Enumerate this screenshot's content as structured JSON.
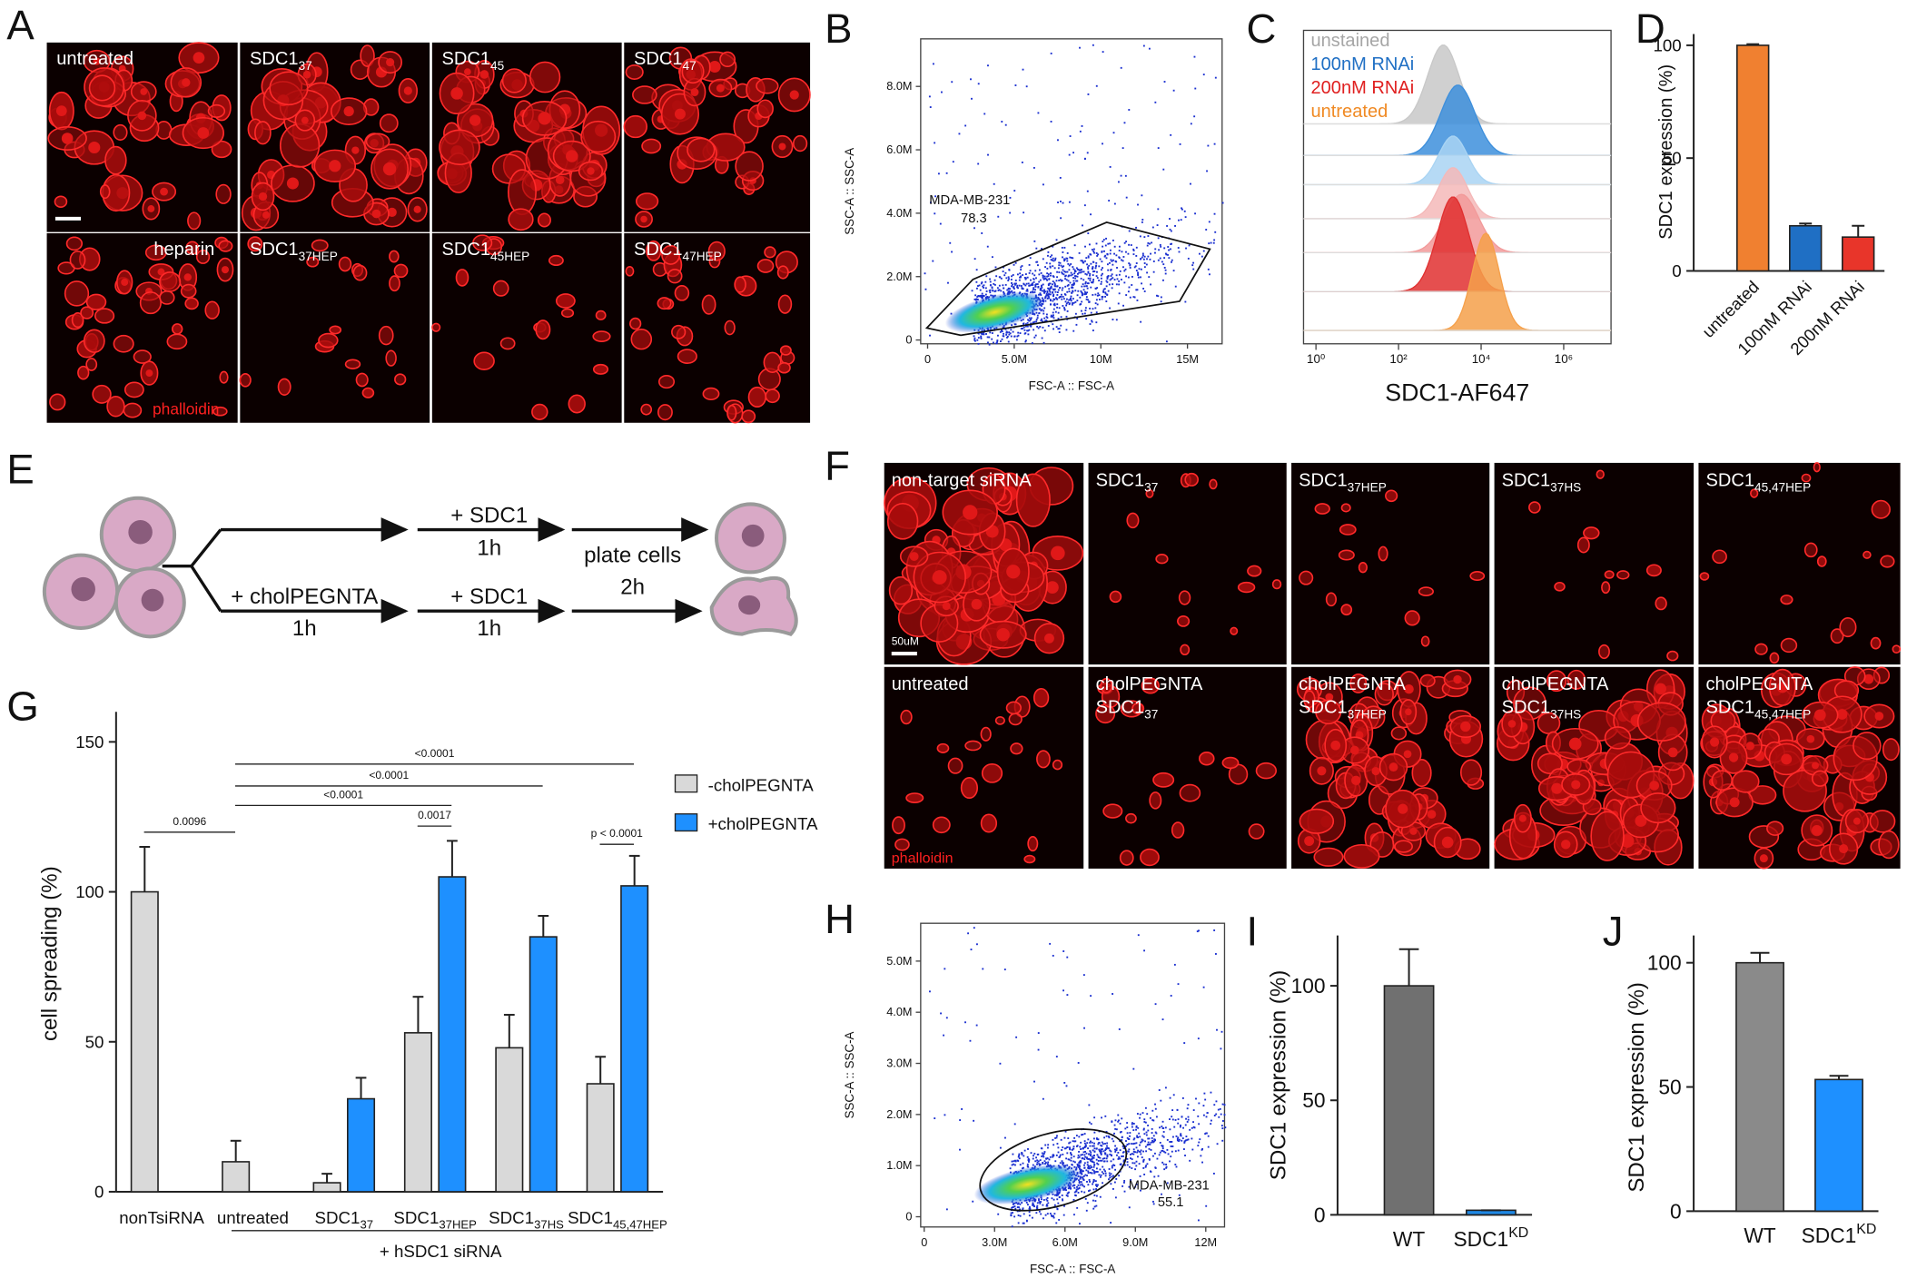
{
  "panel_labels": [
    "A",
    "B",
    "C",
    "D",
    "E",
    "F",
    "G",
    "H",
    "I",
    "J"
  ],
  "panel_a": {
    "row1": [
      {
        "text": "untreated"
      },
      {
        "text": "SDC1",
        "sub": "37"
      },
      {
        "text": "SDC1",
        "sub": "45"
      },
      {
        "text": "SDC1",
        "sub": "47"
      }
    ],
    "row2": [
      {
        "text": "heparin"
      },
      {
        "text": "SDC1",
        "sub": "37HEP"
      },
      {
        "text": "SDC1",
        "sub": "45HEP"
      },
      {
        "text": "SDC1",
        "sub": "47HEP"
      }
    ],
    "stain": "phalloidin"
  },
  "panel_b": {
    "x_label": "FSC-A :: FSC-A",
    "y_label": "SSC-A :: SSC-A",
    "xlim": [
      -400000,
      17000000
    ],
    "ylim": [
      -120000,
      9500000
    ],
    "xticks": [
      0,
      {
        "value": 5000000,
        "label": "5.0M"
      },
      {
        "value": 10000000,
        "label": "10M"
      },
      {
        "value": 15000000,
        "label": "15M"
      }
    ],
    "yticks": [
      0,
      {
        "value": 2000000,
        "label": "2.0M"
      },
      {
        "value": 4000000,
        "label": "4.0M"
      },
      {
        "value": 6000000,
        "label": "6.0M"
      },
      {
        "value": 8000000,
        "label": "8.0M"
      }
    ],
    "gate_name": "MDA-MB-231",
    "gate_percent": 78.3
  },
  "panel_c": {
    "x_label": "SDC1-AF647",
    "log_x": true,
    "xlim": [
      0.5,
      14000000
    ],
    "xticks": [
      {
        "value": 1,
        "label": "10⁰"
      },
      {
        "value": 100,
        "label": "10²"
      },
      {
        "value": 10000,
        "label": "10⁴"
      },
      {
        "value": 1000000,
        "label": "10⁶"
      }
    ],
    "legend": [
      {
        "name": "unstained",
        "color": "#a6a6a6"
      },
      {
        "name": "100nM RNAi",
        "color": "#1f6fc4"
      },
      {
        "name": "200nM RNAi",
        "color": "#e02020"
      },
      {
        "name": "untreated",
        "color": "#f08a24"
      }
    ]
  },
  "panel_e": {
    "top_step": "+ SDC1",
    "top_time": "1h",
    "plate": "plate cells",
    "plate_time": "2h",
    "chol": "+ cholPEGNTA",
    "chol_time": "1h",
    "bottom_step": "+ SDC1",
    "bottom_time": "1h"
  },
  "panel_f": {
    "row1": [
      {
        "text": "non-target siRNA"
      },
      {
        "text": "SDC1",
        "sub": "37"
      },
      {
        "text": "SDC1",
        "sub": "37HEP"
      },
      {
        "text": "SDC1",
        "sub": "37HS"
      },
      {
        "text": "SDC1",
        "sub": "45,47HEP"
      }
    ],
    "row2": [
      {
        "text": "untreated"
      },
      {
        "top": "cholPEGNTA",
        "text": "SDC1",
        "sub": "37"
      },
      {
        "top": "cholPEGNTA",
        "text": "SDC1",
        "sub": "37HEP"
      },
      {
        "top": "cholPEGNTA",
        "text": "SDC1",
        "sub": "37HS"
      },
      {
        "top": "cholPEGNTA",
        "text": "SDC1",
        "sub": "45,47HEP"
      }
    ],
    "scale_bar": "50uM",
    "stain": "phalloidin"
  },
  "panel_h": {
    "x_label": "FSC-A :: FSC-A",
    "y_label": "SSC-A :: SSC-A",
    "xlim": [
      -150000,
      12800000
    ],
    "ylim": [
      -200000,
      5740000
    ],
    "xticks": [
      0,
      {
        "value": 3000000,
        "label": "3.0M"
      },
      {
        "value": 6000000,
        "label": "6.0M"
      },
      {
        "value": 9000000,
        "label": "9.0M"
      },
      {
        "value": 12000000,
        "label": "12M"
      }
    ],
    "yticks": [
      0,
      {
        "value": 1000000,
        "label": "1.0M"
      },
      {
        "value": 2000000,
        "label": "2.0M"
      },
      {
        "value": 3000000,
        "label": "3.0M"
      },
      {
        "value": 4000000,
        "label": "4.0M"
      },
      {
        "value": 5000000,
        "label": "5.0M"
      }
    ],
    "gate_name": "MDA-MB-231",
    "gate_percent": 55.1
  },
  "chart_data": [
    {
      "type": "bar",
      "y_label": "SDC1 expression (%)",
      "categories": [
        "untreated",
        "100nM RNAi",
        "200nM RNAi"
      ],
      "values": [
        100,
        20,
        15
      ],
      "errors": [
        0.5,
        1,
        5
      ],
      "colors": [
        "#f08030",
        "#1f6fc4",
        "#e8352a"
      ],
      "ylim": [
        0,
        105
      ],
      "yticks": [
        0,
        50,
        100
      ]
    },
    {
      "type": "grouped_bar",
      "y_label": "cell spreading (%)",
      "categories": [
        "nonTsiRNA",
        "untreated",
        "SDC1",
        "SDC1",
        "SDC1",
        "SDC1"
      ],
      "category_subscripts": [
        null,
        null,
        "37",
        "37HEP",
        "37HS",
        "45,47HEP"
      ],
      "series": [
        {
          "name": "-cholPEGNTA",
          "color": "#d9d9d9",
          "values": [
            100,
            10,
            3,
            53,
            48,
            36
          ],
          "errors": [
            15,
            7,
            3,
            12,
            11,
            9
          ]
        },
        {
          "name": "+cholPEGNTA",
          "color": "#1e90ff",
          "values": [
            null,
            null,
            31,
            105,
            85,
            102
          ],
          "errors": [
            null,
            null,
            7,
            12,
            7,
            10
          ]
        }
      ],
      "annotations": [
        "0.0096",
        "<0.0001",
        "<0.0001",
        "<0.0001",
        "0.0017",
        "p < 0.0001"
      ],
      "group_label": "+ hSDC1 siRNA",
      "ylim": [
        0,
        160
      ],
      "yticks": [
        0,
        50,
        100,
        150
      ]
    },
    {
      "type": "bar",
      "y_label": "SDC1 expression (%)",
      "categories": [
        "WT",
        "SDC1"
      ],
      "category_superscripts": [
        null,
        "KD"
      ],
      "values": [
        100,
        2
      ],
      "errors": [
        16,
        0
      ],
      "colors": [
        "#707070",
        "#1e88e5"
      ],
      "ylim": [
        0,
        122
      ],
      "yticks": [
        0,
        50,
        100
      ]
    },
    {
      "type": "bar",
      "y_label": "SDC1 expression (%)",
      "categories": [
        "WT",
        "SDC1"
      ],
      "category_superscripts": [
        null,
        "KD"
      ],
      "values": [
        100,
        53
      ],
      "errors": [
        4,
        1.5
      ],
      "colors": [
        "#8a8a8a",
        "#1e90ff"
      ],
      "ylim": [
        0,
        111
      ],
      "yticks": [
        0,
        50,
        100
      ]
    }
  ]
}
